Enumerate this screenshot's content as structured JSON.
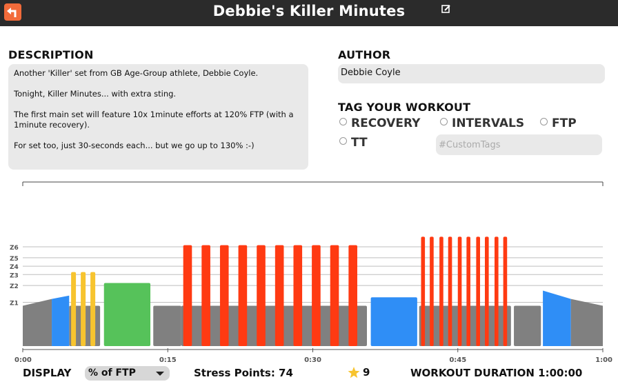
{
  "header": {
    "title": "Debbie's Killer Minutes",
    "back_icon": "back-arrow-icon",
    "edit_icon": "edit-icon"
  },
  "description": {
    "heading": "DESCRIPTION",
    "paragraphs": [
      "Another 'Killer' set from GB Age-Group athlete, Debbie Coyle.",
      "Tonight, Killer Minutes... with extra sting.",
      "The first main set will feature 10x 1minute efforts at 120% FTP (with a 1minute recovery).",
      "For set too, just 30-seconds each... but we go up to 130% :-)"
    ]
  },
  "author": {
    "heading": "AUTHOR",
    "value": "Debbie Coyle"
  },
  "tags": {
    "heading": "TAG YOUR WORKOUT",
    "options": [
      "RECOVERY",
      "INTERVALS",
      "FTP",
      "TT"
    ],
    "custom_placeholder": "#CustomTags"
  },
  "chart_data": {
    "type": "bar",
    "zone_labels": [
      "Z6",
      "Z5",
      "Z4",
      "Z3",
      "Z2",
      "Z1"
    ],
    "x_tick_labels": [
      "0:00",
      "0:15",
      "0:30",
      "0:45",
      "1:00"
    ],
    "x_range_minutes": [
      0,
      60
    ],
    "colors": {
      "gray": "#808080",
      "blue": "#2f8ef6",
      "yellow": "#f7c42f",
      "green": "#56c25a",
      "red": "#ff3a12"
    },
    "segments": [
      {
        "type": "ramp",
        "start": 0.0,
        "end": 3.0,
        "from": 0.48,
        "to": 0.56,
        "color": "gray"
      },
      {
        "type": "ramp",
        "start": 3.0,
        "end": 4.8,
        "from": 0.56,
        "to": 0.6,
        "color": "blue"
      },
      {
        "type": "block",
        "start": 4.8,
        "end": 8.0,
        "power": 0.48,
        "color": "gray"
      },
      {
        "type": "block",
        "start": 5.0,
        "end": 5.5,
        "power": 0.88,
        "color": "yellow"
      },
      {
        "type": "block",
        "start": 6.0,
        "end": 6.5,
        "power": 0.88,
        "color": "yellow"
      },
      {
        "type": "block",
        "start": 7.0,
        "end": 7.5,
        "power": 0.88,
        "color": "yellow"
      },
      {
        "type": "block",
        "start": 8.4,
        "end": 13.2,
        "power": 0.75,
        "color": "green"
      },
      {
        "type": "block",
        "start": 13.5,
        "end": 16.4,
        "power": 0.48,
        "color": "gray"
      },
      {
        "type": "block",
        "start": 16.4,
        "end": 35.6,
        "power": 0.48,
        "color": "gray"
      },
      {
        "type": "block",
        "start": 16.6,
        "end": 17.5,
        "power": 1.2,
        "color": "red"
      },
      {
        "type": "block",
        "start": 18.5,
        "end": 19.4,
        "power": 1.2,
        "color": "red"
      },
      {
        "type": "block",
        "start": 20.4,
        "end": 21.3,
        "power": 1.2,
        "color": "red"
      },
      {
        "type": "block",
        "start": 22.3,
        "end": 23.2,
        "power": 1.2,
        "color": "red"
      },
      {
        "type": "block",
        "start": 24.2,
        "end": 25.1,
        "power": 1.2,
        "color": "red"
      },
      {
        "type": "block",
        "start": 26.1,
        "end": 27.0,
        "power": 1.2,
        "color": "red"
      },
      {
        "type": "block",
        "start": 28.0,
        "end": 28.9,
        "power": 1.2,
        "color": "red"
      },
      {
        "type": "block",
        "start": 29.9,
        "end": 30.8,
        "power": 1.2,
        "color": "red"
      },
      {
        "type": "block",
        "start": 31.8,
        "end": 32.7,
        "power": 1.2,
        "color": "red"
      },
      {
        "type": "block",
        "start": 33.7,
        "end": 34.6,
        "power": 1.2,
        "color": "red"
      },
      {
        "type": "block",
        "start": 36.0,
        "end": 40.8,
        "power": 0.58,
        "color": "blue"
      },
      {
        "type": "block",
        "start": 41.0,
        "end": 50.5,
        "power": 0.48,
        "color": "gray"
      },
      {
        "type": "block",
        "start": 41.2,
        "end": 41.6,
        "power": 1.3,
        "color": "red"
      },
      {
        "type": "block",
        "start": 42.1,
        "end": 42.5,
        "power": 1.3,
        "color": "red"
      },
      {
        "type": "block",
        "start": 43.1,
        "end": 43.5,
        "power": 1.3,
        "color": "red"
      },
      {
        "type": "block",
        "start": 44.0,
        "end": 44.4,
        "power": 1.3,
        "color": "red"
      },
      {
        "type": "block",
        "start": 45.0,
        "end": 45.4,
        "power": 1.3,
        "color": "red"
      },
      {
        "type": "block",
        "start": 45.9,
        "end": 46.3,
        "power": 1.3,
        "color": "red"
      },
      {
        "type": "block",
        "start": 46.9,
        "end": 47.3,
        "power": 1.3,
        "color": "red"
      },
      {
        "type": "block",
        "start": 47.8,
        "end": 48.2,
        "power": 1.3,
        "color": "red"
      },
      {
        "type": "block",
        "start": 48.8,
        "end": 49.2,
        "power": 1.3,
        "color": "red"
      },
      {
        "type": "block",
        "start": 49.7,
        "end": 50.1,
        "power": 1.3,
        "color": "red"
      },
      {
        "type": "block",
        "start": 50.8,
        "end": 53.6,
        "power": 0.48,
        "color": "gray"
      },
      {
        "type": "ramp",
        "start": 53.8,
        "end": 56.7,
        "from": 0.66,
        "to": 0.56,
        "color": "blue"
      },
      {
        "type": "ramp",
        "start": 56.7,
        "end": 60.0,
        "from": 0.56,
        "to": 0.48,
        "color": "gray"
      }
    ]
  },
  "footer": {
    "display_label": "DISPLAY",
    "display_value": "% of FTP",
    "stress_points": "Stress Points: 74",
    "star_icon": "star-icon",
    "rating": "9",
    "duration": "WORKOUT DURATION 1:00:00"
  }
}
